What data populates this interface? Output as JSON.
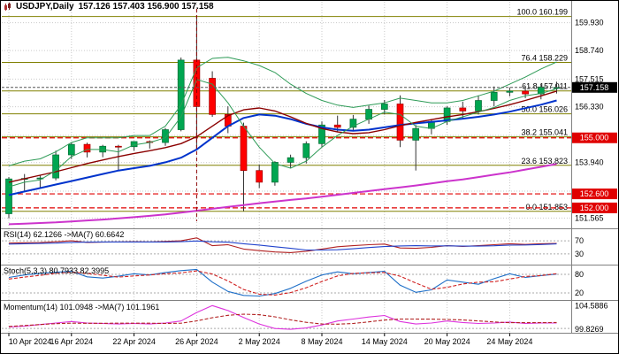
{
  "header": {
    "symbol_timeframe": "USDJPY,Daily",
    "ohlc": "157.126 157.403 156.900 157.158"
  },
  "chart_data": {
    "type": "candlestick",
    "symbol": "USDJPY",
    "timeframe": "Daily",
    "title": "USDJPY,Daily 157.126 157.403 156.900 157.158",
    "x_axis": {
      "labels": [
        {
          "index": 0,
          "text": "10 Apr 2024"
        },
        {
          "index": 4,
          "text": "16 Apr 2024"
        },
        {
          "index": 8,
          "text": "22 Apr 2024"
        },
        {
          "index": 12,
          "text": "26 Apr 2024"
        },
        {
          "index": 16,
          "text": "2 May 2024"
        },
        {
          "index": 20,
          "text": "8 May 2024"
        },
        {
          "index": 24,
          "text": "14 May 2024"
        },
        {
          "index": 28,
          "text": "20 May 2024"
        },
        {
          "index": 32,
          "text": "24 May 2024"
        }
      ]
    },
    "price_axis": {
      "range": [
        151.2,
        160.6
      ],
      "grid": [
        159.93,
        158.74,
        157.515,
        156.33,
        155.105,
        153.94,
        152.715,
        151.565
      ],
      "labels": [
        {
          "v": 159.93,
          "t": "159.930"
        },
        {
          "v": 158.74,
          "t": "158.740"
        },
        {
          "v": 157.515,
          "t": "157.515"
        },
        {
          "v": 156.33,
          "t": "156.330"
        },
        {
          "v": 153.94,
          "t": "153.940"
        },
        {
          "v": 151.565,
          "t": "151.565"
        }
      ],
      "current": {
        "v": 157.158,
        "t": "157.158"
      },
      "levels": [
        {
          "v": 155.0,
          "t": "155.000"
        },
        {
          "v": 152.6,
          "t": "152.600"
        },
        {
          "v": 152.0,
          "t": "152.000"
        }
      ]
    },
    "fibonacci": [
      {
        "pct": "100.0",
        "v": 160.199,
        "t": "160.199"
      },
      {
        "pct": "76.4",
        "v": 158.229,
        "t": "158.229"
      },
      {
        "pct": "61.8",
        "v": 157.011,
        "t": "157.011"
      },
      {
        "pct": "50.0",
        "v": 156.026,
        "t": "156.026"
      },
      {
        "pct": "38.2",
        "v": 155.041,
        "t": "155.041"
      },
      {
        "pct": "23.6",
        "v": 153.823,
        "t": "153.823"
      },
      {
        "pct": "0.0",
        "v": 151.853,
        "t": "151.853"
      }
    ],
    "candles": [
      [
        151.75,
        153.32,
        151.55,
        153.24
      ],
      [
        153.24,
        153.45,
        152.74,
        153.26
      ],
      [
        153.26,
        153.39,
        152.88,
        153.28
      ],
      [
        153.28,
        154.45,
        153.18,
        154.27
      ],
      [
        154.27,
        154.79,
        154.1,
        154.72
      ],
      [
        154.72,
        154.79,
        154.16,
        154.39
      ],
      [
        154.39,
        154.7,
        154.17,
        154.64
      ],
      [
        154.64,
        154.7,
        153.59,
        154.62
      ],
      [
        154.62,
        154.86,
        154.45,
        154.84
      ],
      [
        154.84,
        154.89,
        154.54,
        154.8
      ],
      [
        154.8,
        155.42,
        154.66,
        155.35
      ],
      [
        155.35,
        158.44,
        155.28,
        158.33
      ],
      [
        158.33,
        160.21,
        154.51,
        156.34
      ],
      [
        157.55,
        157.85,
        155.9,
        156.0
      ],
      [
        156.0,
        156.35,
        155.2,
        155.5
      ],
      [
        155.5,
        155.65,
        151.86,
        153.6
      ],
      [
        153.6,
        153.85,
        152.85,
        153.1
      ],
      [
        153.1,
        154.0,
        152.95,
        153.95
      ],
      [
        153.95,
        154.28,
        153.7,
        154.15
      ],
      [
        154.15,
        154.85,
        153.9,
        154.75
      ],
      [
        154.75,
        155.7,
        154.6,
        155.55
      ],
      [
        155.55,
        155.95,
        155.25,
        155.45
      ],
      [
        155.45,
        155.98,
        155.3,
        155.8
      ],
      [
        155.8,
        156.38,
        155.6,
        156.22
      ],
      [
        156.22,
        156.62,
        156.0,
        156.45
      ],
      [
        156.45,
        156.82,
        154.6,
        154.9
      ],
      [
        154.9,
        155.55,
        153.6,
        155.4
      ],
      [
        155.4,
        155.8,
        155.15,
        155.7
      ],
      [
        155.7,
        156.35,
        155.55,
        156.28
      ],
      [
        156.28,
        156.55,
        155.8,
        156.15
      ],
      [
        156.15,
        156.82,
        156.0,
        156.6
      ],
      [
        156.6,
        157.2,
        156.35,
        156.95
      ],
      [
        156.95,
        157.15,
        156.78,
        157.0
      ],
      [
        157.0,
        157.12,
        156.7,
        156.88
      ],
      [
        156.88,
        157.28,
        156.65,
        157.18
      ],
      [
        157.126,
        157.403,
        156.9,
        157.158
      ]
    ],
    "overlays": [
      {
        "name": "ma-magenta-slow",
        "color": "#CC33CC",
        "width": 2,
        "values": [
          151.3,
          151.32,
          151.35,
          151.38,
          151.42,
          151.46,
          151.5,
          151.55,
          151.6,
          151.66,
          151.72,
          151.8,
          151.88,
          151.96,
          152.04,
          152.12,
          152.2,
          152.27,
          152.34,
          152.4,
          152.48,
          152.56,
          152.64,
          152.72,
          152.8,
          152.88,
          152.96,
          153.05,
          153.14,
          153.22,
          153.32,
          153.42,
          153.52,
          153.64,
          153.76,
          153.88
        ]
      },
      {
        "name": "ma-blue-medium",
        "color": "#0033CC",
        "width": 2,
        "values": [
          152.55,
          152.7,
          152.85,
          153.0,
          153.15,
          153.3,
          153.45,
          153.6,
          153.7,
          153.8,
          153.95,
          154.15,
          154.5,
          155.0,
          155.5,
          155.85,
          156.0,
          155.95,
          155.8,
          155.6,
          155.45,
          155.35,
          155.3,
          155.35,
          155.45,
          155.55,
          155.62,
          155.68,
          155.75,
          155.82,
          155.9,
          156.0,
          156.12,
          156.27,
          156.42,
          156.6
        ]
      },
      {
        "name": "ma-maroon",
        "color": "#8B0000",
        "width": 1.4,
        "values": [
          153.1,
          153.25,
          153.4,
          153.55,
          153.72,
          153.9,
          154.05,
          154.2,
          154.33,
          154.45,
          154.58,
          154.75,
          155.05,
          155.5,
          155.95,
          156.2,
          156.28,
          156.15,
          155.9,
          155.62,
          155.4,
          155.25,
          155.18,
          155.22,
          155.35,
          155.52,
          155.66,
          155.78,
          155.9,
          156.0,
          156.12,
          156.26,
          156.42,
          156.6,
          156.8,
          157.0
        ]
      },
      {
        "name": "ma-green-fast",
        "color": "#2E9B57",
        "width": 1,
        "values": [
          152.9,
          153.1,
          153.2,
          153.6,
          154.2,
          154.5,
          154.5,
          154.4,
          154.7,
          154.8,
          155.0,
          155.9,
          157.5,
          157.3,
          156.5,
          155.5,
          154.6,
          153.9,
          153.7,
          154.0,
          154.6,
          155.1,
          155.5,
          155.8,
          156.1,
          156.0,
          155.5,
          155.4,
          155.7,
          155.9,
          156.1,
          156.3,
          156.6,
          156.8,
          156.9,
          157.1
        ]
      },
      {
        "name": "band-green-upper",
        "color": "#2E9B57",
        "width": 1,
        "values": [
          153.8,
          154.0,
          154.1,
          154.4,
          154.8,
          155.0,
          155.0,
          155.0,
          155.1,
          155.1,
          155.5,
          156.4,
          158.0,
          158.4,
          158.45,
          158.3,
          158.1,
          157.8,
          157.3,
          156.9,
          156.6,
          156.4,
          156.3,
          156.4,
          156.5,
          156.7,
          156.6,
          156.5,
          156.5,
          156.6,
          156.8,
          157.0,
          157.3,
          157.6,
          157.95,
          158.25
        ]
      }
    ],
    "event_vline": {
      "index": 12,
      "color": "#8B0000"
    },
    "colors": {
      "up": "#00A651",
      "up_edge": "#006B33",
      "down": "#FF0000",
      "down_edge": "#A00000",
      "wick": "#333333",
      "fib": "#808000",
      "level": "#E00000",
      "grid": "#C9C9C9",
      "axis_text": "#000000",
      "current_box": "#000000",
      "sep": "#808080"
    },
    "panes": {
      "rsi": {
        "label": "RSI(14) 62.1266 ->MA(7) 60.6642",
        "range": [
          0,
          100
        ],
        "levels": [
          70,
          30
        ],
        "axis_labels": [
          {
            "v": 70,
            "t": "70"
          },
          {
            "v": 30,
            "t": "30"
          }
        ],
        "series": [
          {
            "name": "rsi-line",
            "color": "#B22222",
            "dash": false,
            "values": [
              63,
              64,
              64.5,
              67,
              70,
              65,
              66,
              66.5,
              67,
              66.5,
              68,
              70,
              79,
              55,
              58,
              45,
              40,
              36,
              34,
              38,
              45,
              52,
              55,
              58,
              60,
              48,
              47,
              50,
              55,
              53,
              55,
              58,
              61,
              59,
              61,
              62.13
            ]
          },
          {
            "name": "rsi-ma7-line",
            "color": "#2244CC",
            "dash": false,
            "values": [
              60,
              61,
              62,
              63,
              65,
              66,
              66.5,
              66.4,
              66.6,
              66.4,
              66.6,
              67.3,
              69.5,
              67,
              66,
              61,
              57,
              52,
              47,
              42,
              42,
              42.6,
              45.7,
              49.4,
              52.4,
              54.3,
              55,
              54.4,
              54.6,
              53.9,
              53.9,
              54.9,
              56.9,
              57.4,
              58.6,
              60.66
            ]
          }
        ]
      },
      "stoch": {
        "label": "Stoch(5,3,3) 80.7933 82.3995",
        "range": [
          0,
          100
        ],
        "levels": [
          80,
          20
        ],
        "axis_labels": [
          {
            "v": 80,
            "t": "80"
          },
          {
            "v": 20,
            "t": "20"
          }
        ],
        "series": [
          {
            "name": "stoch-main-line",
            "color": "#1E6FC8",
            "dash": false,
            "values": [
              70,
              78,
              83,
              87,
              90,
              72,
              68,
              74,
              82,
              78,
              86,
              92,
              96,
              55,
              25,
              12,
              10,
              18,
              35,
              58,
              78,
              88,
              82,
              86,
              90,
              45,
              22,
              30,
              62,
              55,
              48,
              66,
              82,
              70,
              76,
              80.79
            ]
          },
          {
            "name": "stoch-signal-line",
            "color": "#D02020",
            "dash": true,
            "values": [
              65,
              71,
              77,
              83,
              87,
              83,
              77,
              71,
              75,
              78,
              82,
              85,
              91,
              81,
              59,
              31,
              16,
              13,
              21,
              37,
              57,
              75,
              83,
              85,
              86,
              74,
              52,
              32,
              38,
              49,
              55,
              56,
              65,
              73,
              76,
              82.4
            ]
          }
        ]
      },
      "momentum": {
        "label": "Momentum(14) 101.0948 ->MA(7) 101.1961",
        "range": [
          99.5,
          105
        ],
        "levels": [
          100
        ],
        "axis_labels": [
          {
            "v": 104.5886,
            "t": "104.5886"
          },
          {
            "v": 99.8269,
            "t": "99.8269"
          }
        ],
        "series": [
          {
            "name": "momentum-line",
            "color": "#DD33DD",
            "dash": false,
            "values": [
              100.3,
              100.5,
              100.8,
              101.1,
              101.4,
              101.1,
              101.0,
              100.9,
              101.0,
              100.9,
              101.1,
              101.5,
              103.2,
              104.59,
              103.6,
              102.2,
              100.9,
              100.0,
              99.83,
              100.1,
              100.7,
              101.5,
              101.9,
              102.3,
              102.6,
              101.4,
              100.9,
              101.1,
              101.5,
              101.2,
              101.0,
              101.1,
              101.3,
              101.0,
              101.1,
              101.09
            ]
          },
          {
            "name": "momentum-ma7-line",
            "color": "#B22222",
            "dash": true,
            "values": [
              100.4,
              100.6,
              100.8,
              100.97,
              101.06,
              101.04,
              101.04,
              101.07,
              101.07,
              101.06,
              101.0,
              101.06,
              101.53,
              102.17,
              102.64,
              102.87,
              102.77,
              102.33,
              101.73,
              101.23,
              100.9,
              100.87,
              101.0,
              101.33,
              101.7,
              101.9,
              101.9,
              101.87,
              101.81,
              101.71,
              101.53,
              101.31,
              101.17,
              101.17,
              101.17,
              101.2
            ]
          }
        ]
      }
    }
  }
}
